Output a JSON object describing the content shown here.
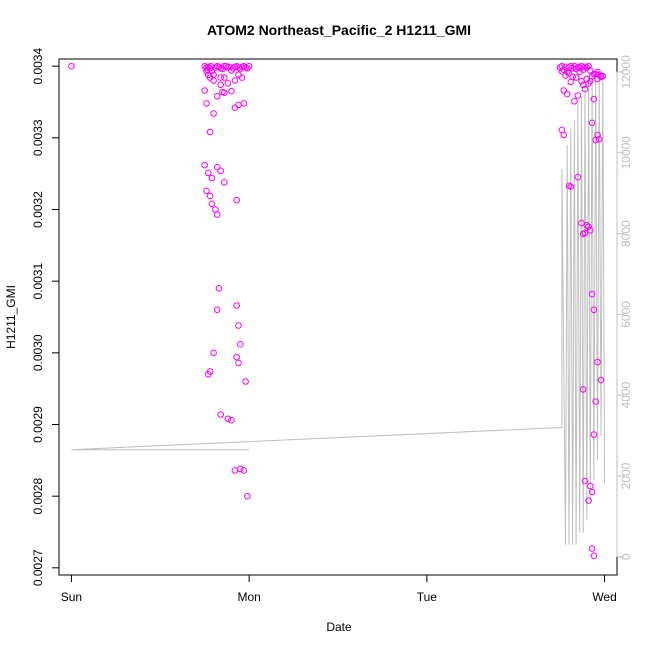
{
  "chart_data": {
    "type": "scatter",
    "title": "ATOM2 Northeast_Pacific_2 H1211_GMI",
    "xlabel": "Date",
    "ylabel": "H1211_GMI",
    "x_ticks": [
      "Sun",
      "Mon",
      "Tue",
      "Wed"
    ],
    "xlim": [
      -0.07,
      3.07
    ],
    "ylim": [
      0.00269,
      0.00341
    ],
    "y_ticks": [
      0.0027,
      0.0028,
      0.0029,
      0.003,
      0.0031,
      0.0032,
      0.0033,
      0.0034
    ],
    "y_tick_labels": [
      "0.0027",
      "0.0028",
      "0.0029",
      "0.0030",
      "0.0031",
      "0.0032",
      "0.0033",
      "0.0034"
    ],
    "y2_ticks": [
      0,
      2000,
      4000,
      6000,
      8000,
      10000,
      12000
    ],
    "y2_tick_labels": [
      "0",
      "2000",
      "4000",
      "6000",
      "8000",
      "10000",
      "12000"
    ],
    "y2lim": [
      -450,
      12320
    ],
    "grid": false,
    "series": [
      {
        "kind": "points",
        "color": "#ff00ff",
        "x_days": [
          0.0,
          0.75,
          0.76,
          0.765,
          0.77,
          0.78,
          0.785,
          0.79,
          0.8,
          0.81,
          0.82,
          0.83,
          0.84,
          0.85,
          0.86,
          0.87,
          0.88,
          0.89,
          0.9,
          0.91,
          0.92,
          0.93,
          0.94,
          0.95,
          0.96,
          0.97,
          0.98,
          0.99,
          1.0,
          0.76,
          0.77,
          0.78,
          0.8,
          0.84,
          0.86,
          0.88,
          0.9,
          0.92,
          0.94,
          0.96,
          0.97,
          0.75,
          0.76,
          0.78,
          0.8,
          0.82,
          0.84,
          0.85,
          0.86,
          0.92,
          0.94,
          0.75,
          0.77,
          0.79,
          0.82,
          0.84,
          0.86,
          0.93,
          0.76,
          0.78,
          0.79,
          0.81,
          0.82,
          0.93,
          0.94,
          0.95,
          0.93,
          0.94,
          0.77,
          0.78,
          0.8,
          0.82,
          0.83,
          0.84,
          0.88,
          0.9,
          0.92,
          0.95,
          0.97,
          0.98,
          0.99,
          2.75,
          2.76,
          2.77,
          2.78,
          2.79,
          2.8,
          2.81,
          2.82,
          2.83,
          2.84,
          2.85,
          2.86,
          2.87,
          2.88,
          2.89,
          2.9,
          2.91,
          2.92,
          2.93,
          2.94,
          2.95,
          2.96,
          2.97,
          2.98,
          2.99,
          2.76,
          2.78,
          2.8,
          2.82,
          2.84,
          2.86,
          2.88,
          2.9,
          2.92,
          2.94,
          2.96,
          2.98,
          2.77,
          2.79,
          2.81,
          2.83,
          2.85,
          2.87,
          2.89,
          2.91,
          2.76,
          2.77,
          2.8,
          2.81,
          2.85,
          2.93,
          2.95,
          2.96,
          2.97,
          2.87,
          2.88,
          2.93,
          2.96,
          2.89,
          2.9,
          2.91,
          2.92,
          2.94,
          2.98,
          2.88,
          2.95,
          2.94,
          2.89,
          2.93,
          2.92,
          2.91,
          2.93,
          2.94
        ],
        "y_values": [
          0.0034,
          0.0034,
          0.003398,
          0.003395,
          0.003399,
          0.003397,
          0.0034,
          0.003393,
          0.003388,
          0.003398,
          0.0034,
          0.003399,
          0.003397,
          0.003396,
          0.0034,
          0.0034,
          0.003398,
          0.003399,
          0.003394,
          0.003397,
          0.003399,
          0.0034,
          0.003398,
          0.003396,
          0.003399,
          0.0034,
          0.003398,
          0.003397,
          0.0034,
          0.003393,
          0.003388,
          0.003384,
          0.00338,
          0.003384,
          0.003384,
          0.003376,
          0.003365,
          0.00338,
          0.003388,
          0.003384,
          0.003348,
          0.003366,
          0.003348,
          0.003308,
          0.003334,
          0.003358,
          0.003374,
          0.003364,
          0.003363,
          0.003342,
          0.003346,
          0.003262,
          0.003251,
          0.003244,
          0.003259,
          0.003254,
          0.003238,
          0.003213,
          0.003226,
          0.003219,
          0.003208,
          0.0032,
          0.003193,
          0.003066,
          0.003038,
          0.003012,
          0.002994,
          0.002986,
          0.00297,
          0.002974,
          0.003,
          0.00306,
          0.00309,
          0.002914,
          0.002908,
          0.002906,
          0.002836,
          0.002838,
          0.002836,
          0.00296,
          0.0028,
          0.003398,
          0.0034,
          0.003395,
          0.003399,
          0.003392,
          0.003398,
          0.0034,
          0.003397,
          0.0034,
          0.003396,
          0.003399,
          0.003398,
          0.0034,
          0.003395,
          0.003399,
          0.003398,
          0.0034,
          0.003394,
          0.003386,
          0.003389,
          0.003389,
          0.003392,
          0.003388,
          0.003385,
          0.003386,
          0.003393,
          0.003387,
          0.00339,
          0.003385,
          0.003384,
          0.003392,
          0.003374,
          0.003382,
          0.003379,
          0.003354,
          0.003382,
          0.003386,
          0.003366,
          0.003361,
          0.003378,
          0.003351,
          0.003359,
          0.003379,
          0.003368,
          0.003376,
          0.003311,
          0.003304,
          0.003233,
          0.003232,
          0.003245,
          0.003321,
          0.003297,
          0.003304,
          0.003298,
          0.003181,
          0.003166,
          0.003082,
          0.002987,
          0.003167,
          0.003178,
          0.003176,
          0.003171,
          0.00306,
          0.002962,
          0.002949,
          0.002932,
          0.002886,
          0.002821,
          0.002806,
          0.002814,
          0.002794,
          0.002727,
          0.002717
        ]
      },
      {
        "kind": "line",
        "axis": "right",
        "color": "#bfbfbf",
        "x_days": [
          0.0,
          1.0,
          1.0,
          0.0,
          0.0,
          2.76,
          2.76,
          2.78,
          2.79,
          2.8,
          2.81,
          2.82,
          2.83,
          2.84,
          2.85,
          2.86,
          2.87,
          2.88,
          2.89,
          2.9,
          2.91,
          2.92,
          2.93,
          2.94,
          2.95,
          2.96,
          2.97,
          2.98,
          2.99,
          3.0
        ],
        "values": [
          2650,
          2650,
          2650,
          2650,
          2650,
          3200,
          9600,
          300,
          10200,
          300,
          10600,
          300,
          10800,
          300,
          11200,
          600,
          11400,
          600,
          11600,
          900,
          11800,
          1400,
          11900,
          1900,
          12000,
          2400,
          12000,
          3000,
          12000,
          1800
        ]
      }
    ]
  }
}
